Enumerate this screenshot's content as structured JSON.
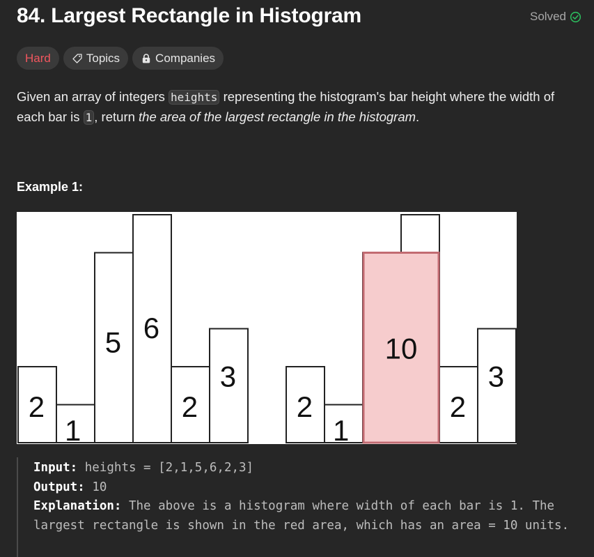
{
  "problem": {
    "title": "84. Largest Rectangle in Histogram",
    "status": "Solved"
  },
  "tags": {
    "difficulty": "Hard",
    "topics": "Topics",
    "companies": "Companies"
  },
  "description": {
    "part1": "Given an array of integers ",
    "code1": "heights",
    "part2": " representing the histogram's bar height where the width of each bar is ",
    "code2": "1",
    "part3": ", return ",
    "emphasis": "the area of the largest rectangle in the histogram",
    "part4": "."
  },
  "example": {
    "title": "Example 1:",
    "input_label": "Input:",
    "input_value": "heights = [2,1,5,6,2,3]",
    "output_label": "Output:",
    "output_value": "10",
    "explanation_label": "Explanation:",
    "explanation_value": "The above is a histogram where width of each bar is 1. The largest rectangle is shown in the red area, which has an area = 10 units."
  },
  "histogram": {
    "heights": [
      2,
      1,
      5,
      6,
      2,
      3
    ],
    "highlight_area": 10,
    "highlight_bars": [
      2,
      3
    ],
    "highlight_height": 5,
    "colors": {
      "highlight_fill": "#f6cccd",
      "highlight_stroke": "#c26b72",
      "bar_stroke": "#222222"
    }
  },
  "colors": {
    "hard": "#f0565e",
    "solved_check": "#2cbb5d",
    "background": "#262626"
  }
}
